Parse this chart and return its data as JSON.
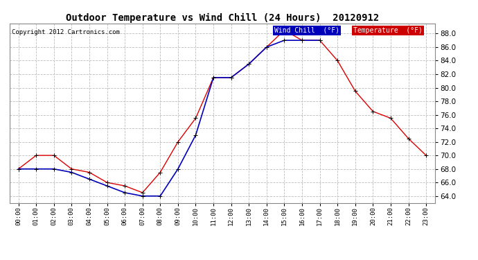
{
  "title": "Outdoor Temperature vs Wind Chill (24 Hours)  20120912",
  "copyright": "Copyright 2012 Cartronics.com",
  "hours": [
    "00:00",
    "01:00",
    "02:00",
    "03:00",
    "04:00",
    "05:00",
    "06:00",
    "07:00",
    "08:00",
    "09:00",
    "10:00",
    "11:00",
    "12:00",
    "13:00",
    "14:00",
    "15:00",
    "16:00",
    "17:00",
    "18:00",
    "19:00",
    "20:00",
    "21:00",
    "22:00",
    "23:00"
  ],
  "temperature": [
    68.0,
    70.0,
    70.0,
    68.0,
    67.5,
    66.0,
    65.5,
    64.5,
    67.5,
    72.0,
    75.5,
    81.5,
    81.5,
    83.5,
    86.0,
    88.5,
    87.0,
    87.0,
    84.0,
    79.5,
    76.5,
    75.5,
    72.5,
    70.0
  ],
  "wind_chill": [
    68.0,
    68.0,
    68.0,
    67.5,
    66.5,
    65.5,
    64.5,
    64.0,
    64.0,
    68.0,
    73.0,
    81.5,
    81.5,
    83.5,
    86.0,
    87.0,
    87.0,
    87.0,
    null,
    null,
    null,
    null,
    null,
    null
  ],
  "temp_color": "#dd0000",
  "wind_chill_color": "#0000bb",
  "ylim": [
    63.0,
    89.5
  ],
  "yticks": [
    64.0,
    66.0,
    68.0,
    70.0,
    72.0,
    74.0,
    76.0,
    78.0,
    80.0,
    82.0,
    84.0,
    86.0,
    88.0
  ],
  "bg_color": "#ffffff",
  "grid_color": "#bbbbbb",
  "legend_wind_bg": "#0000bb",
  "legend_temp_bg": "#cc0000",
  "legend_wind_text": "Wind Chill  (°F)",
  "legend_temp_text": "Temperature  (°F)"
}
